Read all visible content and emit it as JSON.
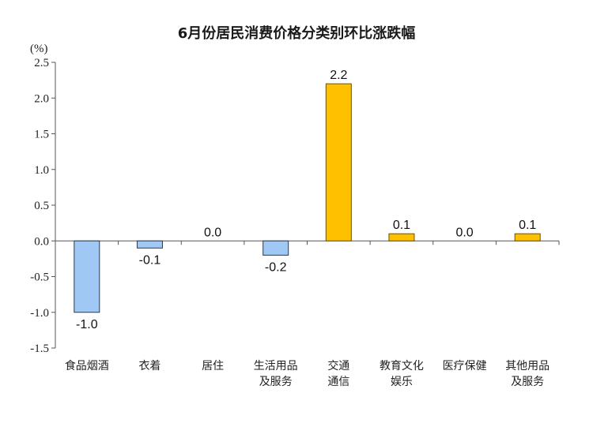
{
  "chart_data": {
    "type": "bar",
    "title": "6月份居民消费价格分类别环比涨跌幅",
    "ylabel": "(%)",
    "xlabel": "",
    "ylim": [
      -1.5,
      2.5
    ],
    "yticks": [
      "2.5",
      "2.0",
      "1.5",
      "1.0",
      "0.5",
      "0.0",
      "-0.5",
      "-1.0",
      "-1.5"
    ],
    "ytick_values": [
      2.5,
      2.0,
      1.5,
      1.0,
      0.5,
      0.0,
      -0.5,
      -1.0,
      -1.5
    ],
    "categories": [
      [
        "食品烟酒"
      ],
      [
        "衣着"
      ],
      [
        "居住"
      ],
      [
        "生活用品",
        "及服务"
      ],
      [
        "交通",
        "通信"
      ],
      [
        "教育文化",
        "娱乐"
      ],
      [
        "医疗保健"
      ],
      [
        "其他用品",
        "及服务"
      ]
    ],
    "values": [
      -1.0,
      -0.1,
      0.0,
      -0.2,
      2.2,
      0.1,
      0.0,
      0.1
    ],
    "value_labels": [
      "-1.0",
      "-0.1",
      "0.0",
      "-0.2",
      "2.2",
      "0.1",
      "0.0",
      "0.1"
    ],
    "colors": {
      "negative_fill": "#9fc8f5",
      "negative_stroke": "#2b3a4f",
      "positive_fill": "#ffc000",
      "positive_stroke": "#6b5200",
      "axis": "#555555"
    },
    "grid": false,
    "legend": "none"
  }
}
